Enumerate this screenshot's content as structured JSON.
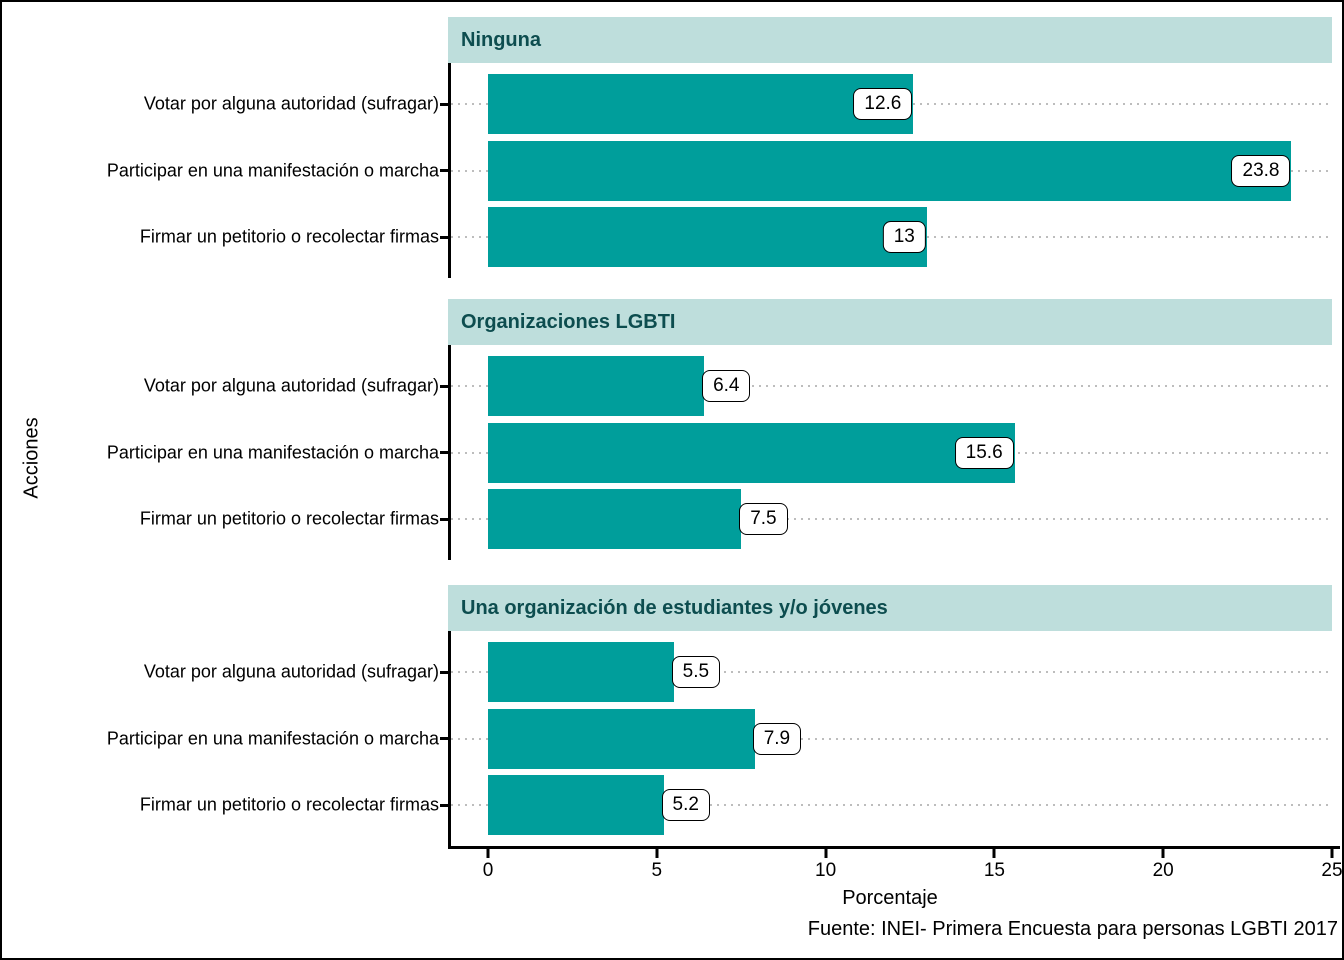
{
  "chart_data": {
    "type": "bar",
    "orientation": "horizontal",
    "ylabel": "Acciones",
    "xlabel": "Porcentaje",
    "caption": "Fuente: INEI- Primera Encuesta para personas LGBTI 2017",
    "xlim": [
      0,
      25
    ],
    "xticks": [
      "0",
      "5",
      "10",
      "15",
      "20",
      "25"
    ],
    "grid": "horizontal-dotted",
    "legend": "none",
    "categories": [
      "Votar por alguna autoridad (sufragar)",
      "Participar en una manifestación o marcha",
      "Firmar un petitorio o recolectar firmas"
    ],
    "facets": [
      {
        "title": "Ninguna",
        "values": [
          12.6,
          23.8,
          13
        ],
        "display_values": [
          "12.6",
          "23.8",
          "13"
        ]
      },
      {
        "title": "Organizaciones LGBTI",
        "values": [
          6.4,
          15.6,
          7.5
        ],
        "display_values": [
          "6.4",
          "15.6",
          "7.5"
        ]
      },
      {
        "title": "Una organización de estudiantes y/o jóvenes",
        "values": [
          5.5,
          7.9,
          5.2
        ],
        "display_values": [
          "5.5",
          "7.9",
          "5.2"
        ]
      }
    ],
    "colors": {
      "bar": "#009E9B",
      "strip_background": "#BEDEDC",
      "strip_text": "#0D4D4F",
      "gridline": "#BDBDBD",
      "axis": "#000000",
      "label_box_background": "#FFFFFF",
      "label_box_border": "#000000"
    }
  }
}
